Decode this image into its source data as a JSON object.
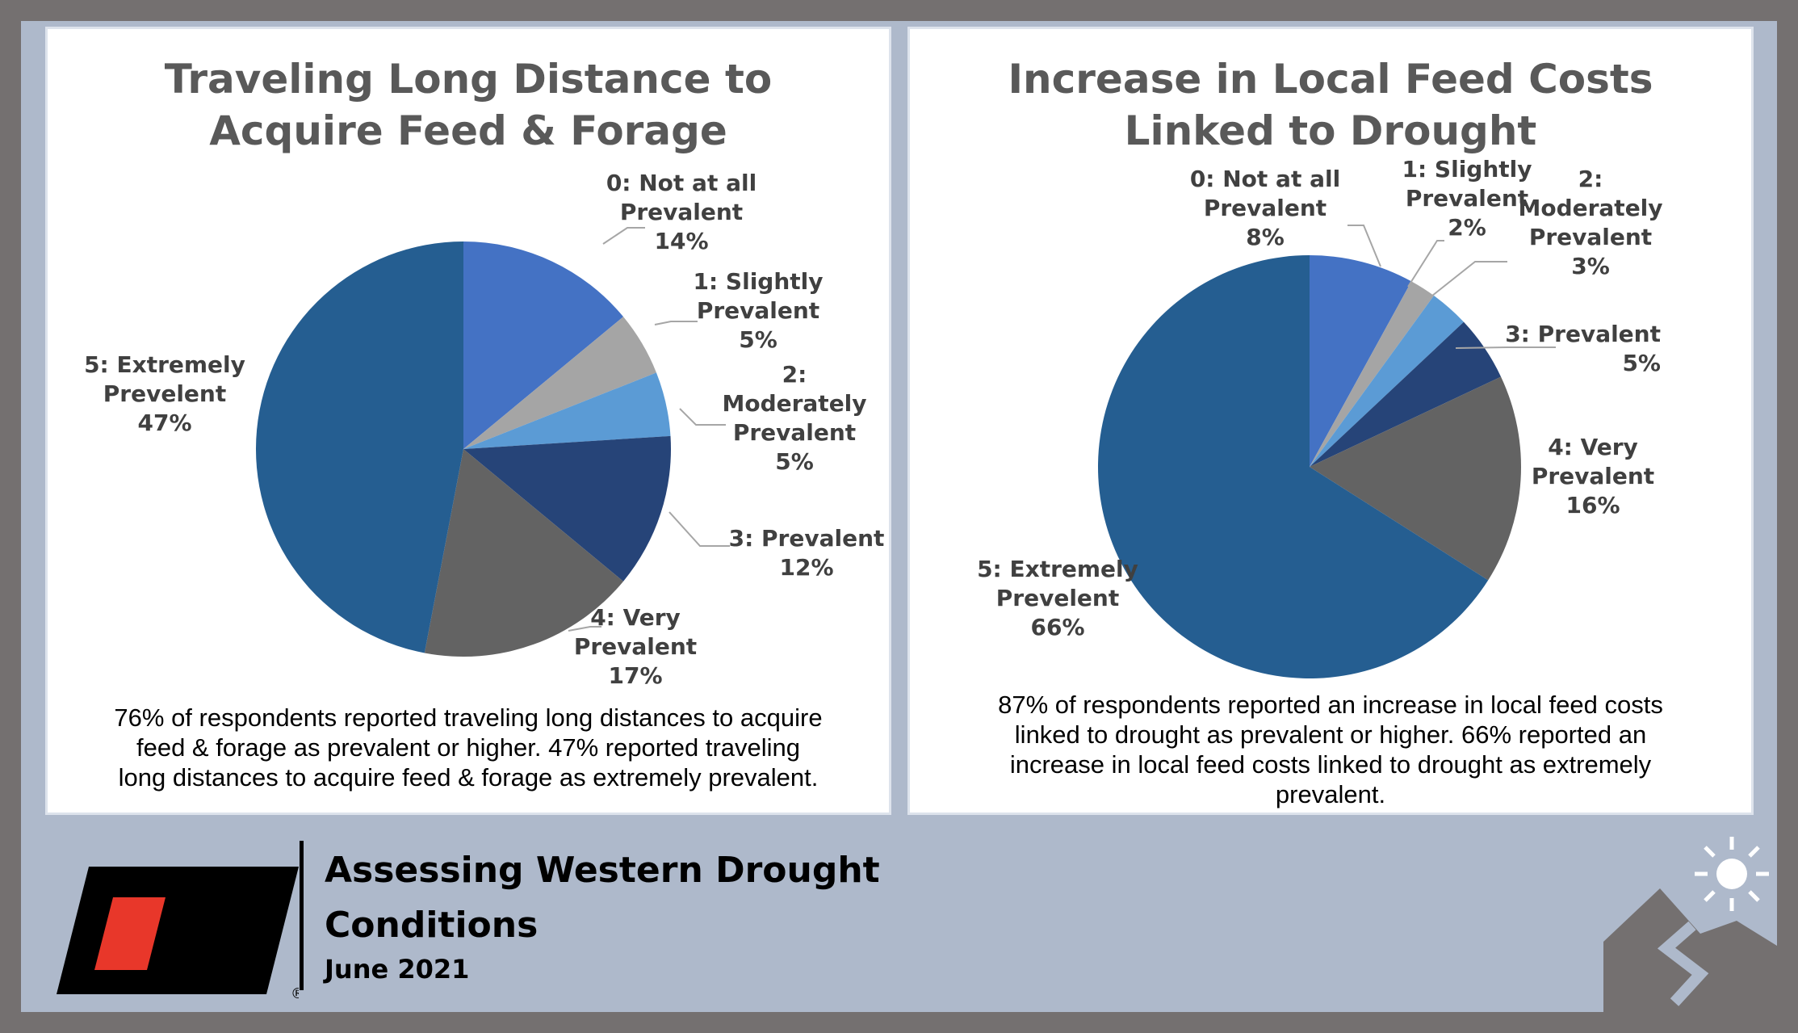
{
  "chart_data": [
    {
      "type": "pie",
      "title": [
        "Traveling Long Distance to",
        "Acquire Feed & Forage"
      ],
      "categories": [
        "0: Not at all Prevalent",
        "1: Slightly Prevalent",
        "2: Moderately Prevalent",
        "3: Prevalent",
        "4: Very Prevalent",
        "5: Extremely Prevelent"
      ],
      "values": [
        14,
        5,
        5,
        12,
        17,
        47
      ],
      "value_labels": [
        "14%",
        "5%",
        "5%",
        "12%",
        "17%",
        "47%"
      ],
      "label_lines": [
        [
          "0: Not at all",
          "Prevalent",
          "14%"
        ],
        [
          "1: Slightly",
          "Prevalent",
          "5%"
        ],
        [
          "2:",
          "Moderately",
          "Prevalent",
          "5%"
        ],
        [
          "3: Prevalent",
          "12%"
        ],
        [
          "4: Very",
          "Prevalent",
          "17%"
        ],
        [
          "5: Extremely",
          "Prevelent",
          "47%"
        ]
      ],
      "colors": [
        "#4472c4",
        "#a5a5a5",
        "#5b9bd5",
        "#264478",
        "#636363",
        "#255e91"
      ],
      "caption": [
        "76% of respondents reported traveling long distances to acquire",
        "feed & forage as prevalent or higher. 47% reported traveling",
        "long distances to acquire feed & forage as extremely prevalent."
      ]
    },
    {
      "type": "pie",
      "title": [
        "Increase in Local Feed Costs",
        "Linked to Drought"
      ],
      "categories": [
        "0: Not at all Prevalent",
        "1: Slightly Prevalent",
        "2: Moderately Prevalent",
        "3: Prevalent",
        "4: Very Prevalent",
        "5: Extremely Prevelent"
      ],
      "values": [
        8,
        2,
        3,
        5,
        16,
        66
      ],
      "value_labels": [
        "8%",
        "2%",
        "3%",
        "5%",
        "16%",
        "66%"
      ],
      "label_lines": [
        [
          "0: Not at all",
          "Prevalent",
          "8%"
        ],
        [
          "1: Slightly",
          "Prevalent",
          "2%"
        ],
        [
          "2:",
          "Moderately",
          "Prevalent",
          "3%"
        ],
        [
          "3: Prevalent",
          "5%"
        ],
        [
          "4: Very",
          "Prevalent",
          "16%"
        ],
        [
          "5: Extremely",
          "Prevelent",
          "66%"
        ]
      ],
      "colors": [
        "#4472c4",
        "#a5a5a5",
        "#5b9bd5",
        "#264478",
        "#636363",
        "#255e91"
      ],
      "caption": [
        "87% of respondents reported an increase in local feed costs",
        "linked to drought as prevalent or higher. 66% reported an",
        "increase in local feed costs linked to drought as extremely",
        "prevalent."
      ]
    }
  ],
  "footer": {
    "title_lines": [
      "Assessing Western Drought",
      "Conditions"
    ],
    "date": "June 2021",
    "logo_registered": "®"
  }
}
